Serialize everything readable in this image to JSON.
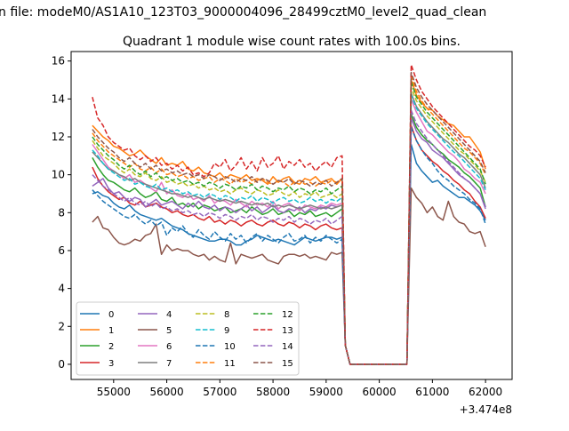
{
  "chart_data": {
    "type": "line",
    "suptitle": "n file: modeM0/AS1A10_123T03_9000004096_28499cztM0_level2_quad_clean",
    "title": "Quadrant 1 module wise count rates with 100.0s bins.",
    "xlabel": "",
    "ylabel": "",
    "x_offset_label": "+3.474e8",
    "xlim": [
      54200,
      62500
    ],
    "ylim": [
      -0.8,
      16.5
    ],
    "xticks": [
      55000,
      56000,
      57000,
      58000,
      59000,
      60000,
      61000,
      62000
    ],
    "xtick_labels": [
      "55000",
      "56000",
      "57000",
      "58000",
      "59000",
      "60000",
      "61000",
      "62000"
    ],
    "yticks": [
      0,
      2,
      4,
      6,
      8,
      10,
      12,
      14,
      16
    ],
    "ytick_labels": [
      "0",
      "2",
      "4",
      "6",
      "8",
      "10",
      "12",
      "14",
      "16"
    ],
    "grid": false,
    "legend_position": "lower-left",
    "legend_columns": 4,
    "x_start": 54600,
    "x_step": 100,
    "n_pre": 48,
    "n_post": 15,
    "series": [
      {
        "name": "0",
        "color": "#1f77b4",
        "dash": "solid",
        "pre": [
          9.0,
          9.1,
          8.9,
          8.8,
          8.5,
          8.3,
          8.2,
          8.4,
          8.1,
          7.9,
          7.8,
          7.7,
          7.6,
          7.7,
          7.5,
          7.3,
          7.2,
          7.1,
          6.9,
          6.8,
          6.7,
          6.6,
          6.5,
          6.5,
          6.6,
          6.6,
          6.5,
          6.3,
          6.3,
          6.5,
          6.6,
          6.8,
          6.7,
          6.6,
          6.5,
          6.6,
          6.5,
          6.4,
          6.3,
          6.5,
          6.7,
          6.6,
          6.5,
          6.6,
          6.7,
          6.7,
          6.6,
          6.7
        ],
        "post": [
          11.6,
          10.6,
          10.2,
          9.9,
          9.6,
          9.7,
          9.4,
          9.2,
          9.0,
          8.8,
          8.8,
          8.6,
          8.4,
          8.1,
          7.6
        ]
      },
      {
        "name": "1",
        "color": "#ff7f0e",
        "dash": "solid",
        "pre": [
          12.6,
          12.3,
          12.0,
          11.8,
          11.5,
          11.4,
          11.2,
          11.0,
          11.1,
          11.3,
          11.0,
          10.8,
          10.6,
          10.9,
          10.5,
          10.6,
          10.5,
          10.7,
          10.3,
          10.2,
          10.4,
          10.1,
          10.0,
          9.9,
          10.1,
          9.8,
          10.0,
          9.9,
          9.8,
          10.0,
          9.7,
          9.8,
          9.7,
          9.5,
          9.9,
          9.6,
          9.8,
          9.9,
          9.6,
          9.5,
          9.8,
          9.7,
          9.9,
          9.6,
          9.7,
          9.8,
          9.5,
          9.8
        ],
        "post": [
          15.0,
          14.2,
          13.8,
          13.5,
          13.4,
          13.1,
          12.9,
          12.7,
          12.6,
          12.3,
          12.0,
          12.0,
          11.6,
          11.2,
          10.3
        ]
      },
      {
        "name": "2",
        "color": "#2ca02c",
        "dash": "solid",
        "pre": [
          10.9,
          10.4,
          10.0,
          9.7,
          9.6,
          9.4,
          9.2,
          9.1,
          9.3,
          9.0,
          8.8,
          8.9,
          9.1,
          8.7,
          8.6,
          8.8,
          8.4,
          8.5,
          8.3,
          8.5,
          8.2,
          8.4,
          8.3,
          8.1,
          8.2,
          8.3,
          8.0,
          8.1,
          8.2,
          8.0,
          8.3,
          8.1,
          7.9,
          8.0,
          8.2,
          7.9,
          8.0,
          8.1,
          7.8,
          8.0,
          7.9,
          8.1,
          7.8,
          7.9,
          8.0,
          7.8,
          8.0,
          8.2
        ],
        "post": [
          13.2,
          12.5,
          12.1,
          11.8,
          11.6,
          11.3,
          11.1,
          10.8,
          10.6,
          10.4,
          10.1,
          9.9,
          9.6,
          9.3,
          8.3
        ]
      },
      {
        "name": "3",
        "color": "#d62728",
        "dash": "solid",
        "pre": [
          10.4,
          9.8,
          9.4,
          9.1,
          8.9,
          8.7,
          8.8,
          8.5,
          8.4,
          8.6,
          8.3,
          8.4,
          8.5,
          8.3,
          8.2,
          8.0,
          8.1,
          7.9,
          7.8,
          7.9,
          7.7,
          7.6,
          7.8,
          7.5,
          7.6,
          7.4,
          7.6,
          7.5,
          7.3,
          7.5,
          7.6,
          7.4,
          7.3,
          7.5,
          7.6,
          7.4,
          7.3,
          7.5,
          7.4,
          7.2,
          7.4,
          7.3,
          7.1,
          7.3,
          7.4,
          7.2,
          7.1,
          7.2
        ],
        "post": [
          12.6,
          11.8,
          11.3,
          11.0,
          10.7,
          10.5,
          10.2,
          10.0,
          9.7,
          9.5,
          9.2,
          9.0,
          8.6,
          8.3,
          7.7
        ]
      },
      {
        "name": "4",
        "color": "#9467bd",
        "dash": "solid",
        "pre": [
          9.4,
          9.6,
          9.8,
          9.3,
          9.0,
          9.1,
          8.8,
          8.6,
          8.8,
          8.7,
          8.3,
          8.5,
          8.7,
          8.4,
          8.5,
          8.6,
          8.4,
          8.2,
          8.5,
          8.3,
          8.6,
          8.3,
          8.2,
          8.4,
          8.1,
          8.3,
          8.2,
          8.0,
          8.2,
          8.4,
          8.1,
          8.3,
          8.0,
          8.2,
          8.4,
          8.1,
          8.0,
          8.2,
          8.1,
          8.3,
          8.0,
          8.2,
          8.1,
          8.3,
          8.2,
          8.4,
          8.3,
          8.4
        ],
        "post": [
          13.0,
          12.3,
          11.9,
          11.7,
          11.3,
          11.1,
          10.9,
          10.6,
          10.3,
          10.0,
          9.8,
          9.6,
          9.3,
          9.0,
          8.2
        ]
      },
      {
        "name": "5",
        "color": "#8c564b",
        "dash": "solid",
        "pre": [
          7.5,
          7.8,
          7.2,
          7.1,
          6.7,
          6.4,
          6.3,
          6.4,
          6.6,
          6.5,
          6.8,
          6.9,
          7.4,
          5.8,
          6.3,
          6.0,
          6.1,
          6.0,
          6.0,
          5.8,
          5.7,
          5.8,
          5.5,
          5.7,
          5.5,
          5.4,
          6.4,
          5.3,
          5.8,
          5.7,
          5.6,
          5.7,
          5.8,
          5.5,
          5.4,
          5.3,
          5.7,
          5.8,
          5.8,
          5.7,
          5.8,
          5.6,
          5.7,
          5.6,
          5.5,
          5.9,
          5.8,
          5.9
        ],
        "post": [
          9.3,
          8.8,
          8.5,
          8.0,
          8.3,
          7.8,
          7.6,
          8.6,
          7.8,
          7.5,
          7.4,
          7.0,
          6.9,
          7.0,
          6.2
        ]
      },
      {
        "name": "6",
        "color": "#e377c2",
        "dash": "solid",
        "pre": [
          11.6,
          11.2,
          10.8,
          10.4,
          10.2,
          10.0,
          9.8,
          10.0,
          9.6,
          9.7,
          9.5,
          9.3,
          9.1,
          9.6,
          9.0,
          9.2,
          8.9,
          8.8,
          9.0,
          8.7,
          8.8,
          8.6,
          8.9,
          8.5,
          8.7,
          8.6,
          8.4,
          8.7,
          8.5,
          8.3,
          8.6,
          8.4,
          8.5,
          8.3,
          8.6,
          8.2,
          8.4,
          8.5,
          8.3,
          8.1,
          8.4,
          8.3,
          8.2,
          8.4,
          8.3,
          8.5,
          8.4,
          8.5
        ],
        "post": [
          14.0,
          13.3,
          12.8,
          12.3,
          12.1,
          11.8,
          11.5,
          11.2,
          11.0,
          10.7,
          10.3,
          10.1,
          9.8,
          9.6,
          9.0
        ]
      },
      {
        "name": "7",
        "color": "#7f7f7f",
        "dash": "solid",
        "pre": [
          11.2,
          10.9,
          10.6,
          10.3,
          10.2,
          10.0,
          9.9,
          9.7,
          9.8,
          9.6,
          9.5,
          9.4,
          9.3,
          9.2,
          9.1,
          9.0,
          9.0,
          8.9,
          8.8,
          8.9,
          8.8,
          8.7,
          8.8,
          8.7,
          8.6,
          8.7,
          8.6,
          8.5,
          8.6,
          8.5,
          8.4,
          8.5,
          8.4,
          8.5,
          8.3,
          8.4,
          8.3,
          8.4,
          8.3,
          8.2,
          8.3,
          8.4,
          8.3,
          8.2,
          8.3,
          8.2,
          8.3,
          8.4
        ],
        "post": [
          14.3,
          13.6,
          13.2,
          12.8,
          12.5,
          12.2,
          11.9,
          11.7,
          11.4,
          11.1,
          10.9,
          10.6,
          10.3,
          10.0,
          9.3
        ]
      },
      {
        "name": "8",
        "color": "#bcbd22",
        "dash": "dashed",
        "pre": [
          11.8,
          11.4,
          11.0,
          10.8,
          10.6,
          10.3,
          10.1,
          10.3,
          10.0,
          9.9,
          10.1,
          9.8,
          9.7,
          9.9,
          9.6,
          9.7,
          9.5,
          9.6,
          9.4,
          9.5,
          9.3,
          9.4,
          9.2,
          9.3,
          9.1,
          9.2,
          9.0,
          9.2,
          9.3,
          9.1,
          9.0,
          9.2,
          9.1,
          8.9,
          9.0,
          9.2,
          9.0,
          8.9,
          9.1,
          8.8,
          9.0,
          8.9,
          9.1,
          8.8,
          8.9,
          9.0,
          8.8,
          9.0
        ],
        "post": [
          14.6,
          13.9,
          13.5,
          13.1,
          12.8,
          12.5,
          12.2,
          11.9,
          11.6,
          11.3,
          11.1,
          10.8,
          10.5,
          10.2,
          9.6
        ]
      },
      {
        "name": "9",
        "color": "#17becf",
        "dash": "dashed",
        "pre": [
          11.3,
          11.0,
          10.6,
          10.3,
          10.1,
          9.9,
          9.7,
          9.8,
          9.5,
          9.6,
          9.4,
          9.3,
          9.5,
          9.2,
          9.3,
          9.1,
          9.2,
          9.0,
          9.1,
          8.9,
          9.0,
          8.8,
          9.0,
          8.9,
          8.7,
          8.9,
          8.8,
          8.6,
          8.8,
          8.7,
          8.9,
          8.6,
          8.8,
          8.7,
          8.5,
          8.7,
          8.8,
          8.6,
          8.7,
          8.5,
          8.6,
          8.8,
          8.6,
          8.7,
          8.5,
          8.7,
          8.6,
          8.8
        ],
        "post": [
          14.2,
          13.5,
          13.1,
          12.7,
          12.4,
          12.1,
          11.8,
          11.5,
          11.2,
          11.0,
          10.7,
          10.4,
          10.1,
          9.8,
          9.2
        ]
      },
      {
        "name": "10",
        "color": "#1f77b4",
        "dash": "dashed",
        "pre": [
          9.2,
          8.9,
          8.6,
          8.4,
          8.2,
          8.0,
          7.8,
          7.7,
          7.9,
          7.6,
          7.4,
          7.6,
          7.3,
          7.5,
          6.8,
          7.2,
          7.0,
          7.3,
          6.9,
          6.7,
          7.1,
          6.8,
          6.6,
          7.0,
          6.7,
          6.5,
          6.9,
          6.6,
          6.8,
          6.4,
          6.7,
          6.9,
          6.5,
          6.8,
          6.6,
          6.4,
          6.7,
          6.9,
          6.5,
          6.6,
          6.8,
          6.4,
          6.7,
          6.5,
          6.8,
          6.6,
          6.4,
          6.6
        ],
        "post": [
          12.5,
          11.8,
          11.3,
          10.9,
          10.6,
          10.2,
          9.9,
          9.7,
          9.4,
          9.2,
          9.0,
          8.7,
          8.5,
          8.2,
          7.4
        ]
      },
      {
        "name": "11",
        "color": "#ff7f0e",
        "dash": "dashed",
        "pre": [
          12.2,
          11.8,
          11.5,
          11.2,
          11.0,
          10.8,
          10.6,
          10.4,
          10.6,
          10.3,
          10.2,
          10.4,
          10.1,
          10.3,
          10.0,
          10.1,
          9.9,
          10.0,
          9.8,
          9.9,
          9.7,
          9.8,
          9.9,
          9.6,
          9.8,
          9.7,
          9.5,
          9.8,
          9.6,
          9.7,
          9.5,
          9.7,
          9.8,
          9.6,
          9.5,
          9.7,
          9.6,
          9.4,
          9.6,
          9.7,
          9.5,
          9.6,
          9.4,
          9.6,
          9.5,
          9.7,
          9.6,
          9.8
        ],
        "post": [
          15.2,
          14.4,
          13.9,
          13.5,
          13.2,
          12.9,
          12.6,
          12.3,
          12.0,
          11.7,
          11.4,
          11.2,
          10.9,
          10.6,
          10.0
        ]
      },
      {
        "name": "12",
        "color": "#2ca02c",
        "dash": "dashed",
        "pre": [
          12.0,
          11.6,
          11.3,
          11.0,
          10.8,
          10.5,
          10.3,
          10.5,
          10.2,
          10.0,
          10.2,
          9.9,
          10.1,
          9.8,
          9.9,
          9.7,
          9.8,
          9.6,
          9.7,
          9.5,
          9.6,
          9.4,
          9.6,
          9.5,
          9.3,
          9.5,
          9.4,
          9.2,
          9.4,
          9.3,
          9.5,
          9.2,
          9.4,
          9.3,
          9.1,
          9.3,
          9.2,
          9.4,
          9.1,
          9.3,
          9.2,
          9.0,
          9.2,
          9.1,
          9.3,
          9.0,
          9.2,
          9.4
        ],
        "post": [
          14.9,
          14.1,
          13.7,
          13.3,
          13.0,
          12.7,
          12.4,
          12.1,
          11.8,
          11.5,
          11.2,
          10.9,
          10.6,
          10.3,
          9.5
        ]
      },
      {
        "name": "13",
        "color": "#d62728",
        "dash": "dashed",
        "pre": [
          14.1,
          13.0,
          12.6,
          12.0,
          11.7,
          11.5,
          11.3,
          11.4,
          11.0,
          10.8,
          11.0,
          10.7,
          10.9,
          10.5,
          10.6,
          10.3,
          10.5,
          10.2,
          10.4,
          10.0,
          10.1,
          9.9,
          10.1,
          10.6,
          10.4,
          10.8,
          10.2,
          10.5,
          10.9,
          10.3,
          10.7,
          10.2,
          10.9,
          10.4,
          10.6,
          11.0,
          10.3,
          10.7,
          10.5,
          10.8,
          10.4,
          10.6,
          10.2,
          10.5,
          10.7,
          10.4,
          10.9,
          11.0
        ],
        "post": [
          15.8,
          15.0,
          14.4,
          14.0,
          13.6,
          13.3,
          13.0,
          12.7,
          12.4,
          12.1,
          11.8,
          11.5,
          11.3,
          11.0,
          10.4
        ]
      },
      {
        "name": "14",
        "color": "#9467bd",
        "dash": "dashed",
        "pre": [
          10.0,
          9.7,
          9.4,
          9.2,
          9.0,
          8.8,
          8.6,
          8.8,
          8.5,
          8.4,
          8.6,
          8.3,
          8.5,
          8.2,
          8.3,
          8.1,
          8.2,
          8.0,
          8.1,
          7.9,
          8.0,
          7.8,
          8.0,
          7.9,
          7.7,
          7.9,
          7.8,
          7.6,
          7.8,
          7.7,
          7.9,
          7.6,
          7.8,
          7.7,
          7.5,
          7.7,
          7.6,
          7.8,
          7.5,
          7.7,
          7.6,
          7.4,
          7.6,
          7.5,
          7.7,
          7.4,
          7.6,
          7.8
        ],
        "post": [
          13.4,
          12.7,
          12.3,
          11.9,
          11.6,
          11.3,
          11.0,
          10.7,
          10.4,
          10.1,
          9.8,
          9.6,
          9.3,
          9.0,
          8.3
        ]
      },
      {
        "name": "15",
        "color": "#8c564b",
        "dash": "dashed",
        "pre": [
          12.4,
          12.0,
          11.7,
          11.4,
          11.2,
          10.9,
          10.7,
          10.9,
          10.6,
          10.4,
          10.6,
          10.3,
          10.5,
          10.2,
          10.3,
          10.1,
          10.2,
          10.0,
          10.1,
          9.9,
          10.0,
          9.8,
          10.0,
          9.9,
          9.7,
          9.9,
          9.8,
          9.6,
          9.8,
          9.7,
          9.9,
          9.6,
          9.8,
          9.7,
          9.5,
          9.7,
          9.6,
          9.8,
          9.5,
          9.7,
          9.6,
          9.4,
          9.6,
          9.5,
          9.7,
          9.4,
          9.6,
          9.8
        ],
        "post": [
          15.4,
          14.6,
          14.1,
          13.7,
          13.4,
          13.1,
          12.8,
          12.5,
          12.2,
          11.9,
          11.6,
          11.3,
          11.0,
          10.7,
          10.1
        ]
      }
    ]
  }
}
